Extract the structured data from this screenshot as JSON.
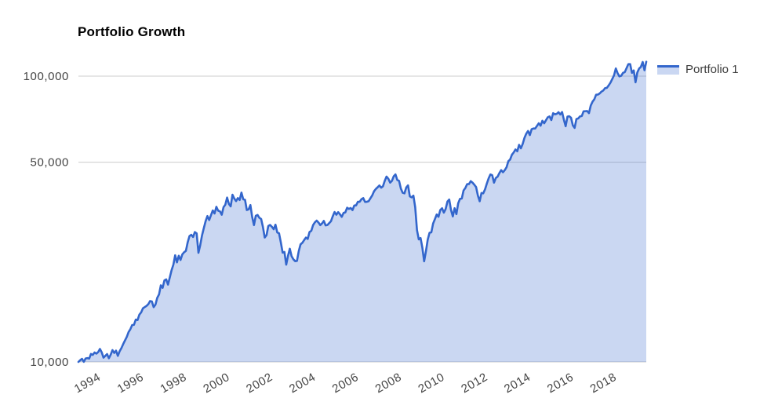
{
  "title": "Portfolio Growth",
  "legend": {
    "items": [
      {
        "label": "Portfolio 1"
      }
    ]
  },
  "colors": {
    "series_line": "#3366cc",
    "series_fill": "#3366cc",
    "series_fill_opacity": 0.26,
    "gridline": "#cccccc",
    "axis_label": "#444444",
    "title": "#000000",
    "background": "#ffffff"
  },
  "chart_data": {
    "type": "area",
    "title": "Portfolio Growth",
    "y_scale": "log",
    "x_unit": "month",
    "x_start": "1993-01",
    "x_end": "2019-06",
    "x_tick_years": [
      1994,
      1996,
      1998,
      2000,
      2002,
      2004,
      2006,
      2008,
      2010,
      2012,
      2014,
      2016,
      2018
    ],
    "y_ticks": [
      {
        "value": 10000,
        "label": "10,000"
      },
      {
        "value": 50000,
        "label": "50,000"
      },
      {
        "value": 100000,
        "label": "100,000"
      }
    ],
    "ylim": [
      10000,
      120000
    ],
    "grid": "horizontal-only",
    "legend_position": "top-right",
    "series": [
      {
        "name": "Portfolio 1",
        "color": "#3366cc",
        "values": [
          10000,
          10140,
          10250,
          10010,
          10280,
          10310,
          10270,
          10660,
          10580,
          10790,
          10690,
          10820,
          11100,
          10800,
          10350,
          10500,
          10650,
          10300,
          10600,
          11000,
          10750,
          10950,
          10500,
          10900,
          11180,
          11550,
          11890,
          12240,
          12720,
          13020,
          13460,
          13490,
          14060,
          14010,
          14630,
          14900,
          15400,
          15550,
          15700,
          15920,
          16330,
          16270,
          15550,
          15870,
          16760,
          17230,
          18530,
          18160,
          19290,
          19440,
          18640,
          19750,
          20940,
          21890,
          23620,
          22300,
          23520,
          22740,
          23790,
          24200,
          24470,
          26230,
          27570,
          27840,
          27360,
          28470,
          28160,
          24090,
          25640,
          27720,
          29390,
          31080,
          32380,
          31370,
          32620,
          33880,
          33070,
          34900,
          33820,
          33650,
          32730,
          34800,
          35500,
          37590,
          35700,
          35030,
          38460,
          37300,
          36540,
          37440,
          36860,
          39140,
          37080,
          36920,
          34000,
          34180,
          35380,
          32150,
          30110,
          32450,
          32670,
          31940,
          31630,
          29650,
          27250,
          27760,
          29890,
          30150,
          29710,
          29120,
          30220,
          28390,
          28180,
          26170,
          24130,
          24250,
          21900,
          23510,
          24890,
          23430,
          22860,
          22520,
          22570,
          24430,
          25790,
          26110,
          26690,
          27230,
          26940,
          28470,
          28770,
          30110,
          30790,
          31220,
          30750,
          30110,
          30520,
          31140,
          30040,
          30140,
          30600,
          31080,
          32360,
          33460,
          32730,
          33430,
          32850,
          32180,
          33210,
          33370,
          34630,
          34300,
          34560,
          33980,
          35270,
          35300,
          36330,
          36330,
          37100,
          37430,
          36300,
          36340,
          36510,
          37380,
          38240,
          39530,
          40280,
          40820,
          41450,
          40720,
          41170,
          43010,
          44520,
          43740,
          42400,
          43000,
          44610,
          45310,
          43320,
          43010,
          40410,
          39080,
          38890,
          40770,
          41480,
          37970,
          37650,
          38180,
          34770,
          28930,
          26840,
          27130,
          25100,
          22500,
          24400,
          26800,
          28300,
          28400,
          30500,
          31600,
          32800,
          32200,
          34000,
          34500,
          33300,
          34300,
          36400,
          37000,
          34000,
          32300,
          34500,
          32900,
          35900,
          37200,
          37300,
          39800,
          40600,
          41900,
          41900,
          42900,
          42400,
          41700,
          40900,
          38200,
          36500,
          39000,
          38900,
          40200,
          42100,
          43900,
          45300,
          45000,
          42400,
          44000,
          44500,
          45800,
          46900,
          46100,
          46900,
          48000,
          50400,
          51100,
          53100,
          54100,
          55400,
          54600,
          57500,
          55900,
          57900,
          60800,
          62900,
          64300,
          62200,
          65200,
          65600,
          65600,
          67000,
          68400,
          67100,
          69800,
          68400,
          70100,
          71800,
          72300,
          70200,
          74200,
          73500,
          73800,
          74800,
          73400,
          74900,
          70400,
          66800,
          72200,
          72400,
          71500,
          67300,
          65900,
          70800,
          71100,
          72300,
          72500,
          75300,
          75400,
          75500,
          74200,
          78900,
          81400,
          83000,
          86100,
          86200,
          87000,
          88300,
          89100,
          90800,
          91000,
          92800,
          94900,
          97700,
          100700,
          106400,
          102400,
          99800,
          100300,
          102700,
          103300,
          106700,
          110200,
          110200,
          102700,
          104700,
          95200,
          103000,
          106300,
          107800,
          112100,
          104900,
          112300
        ]
      }
    ]
  }
}
